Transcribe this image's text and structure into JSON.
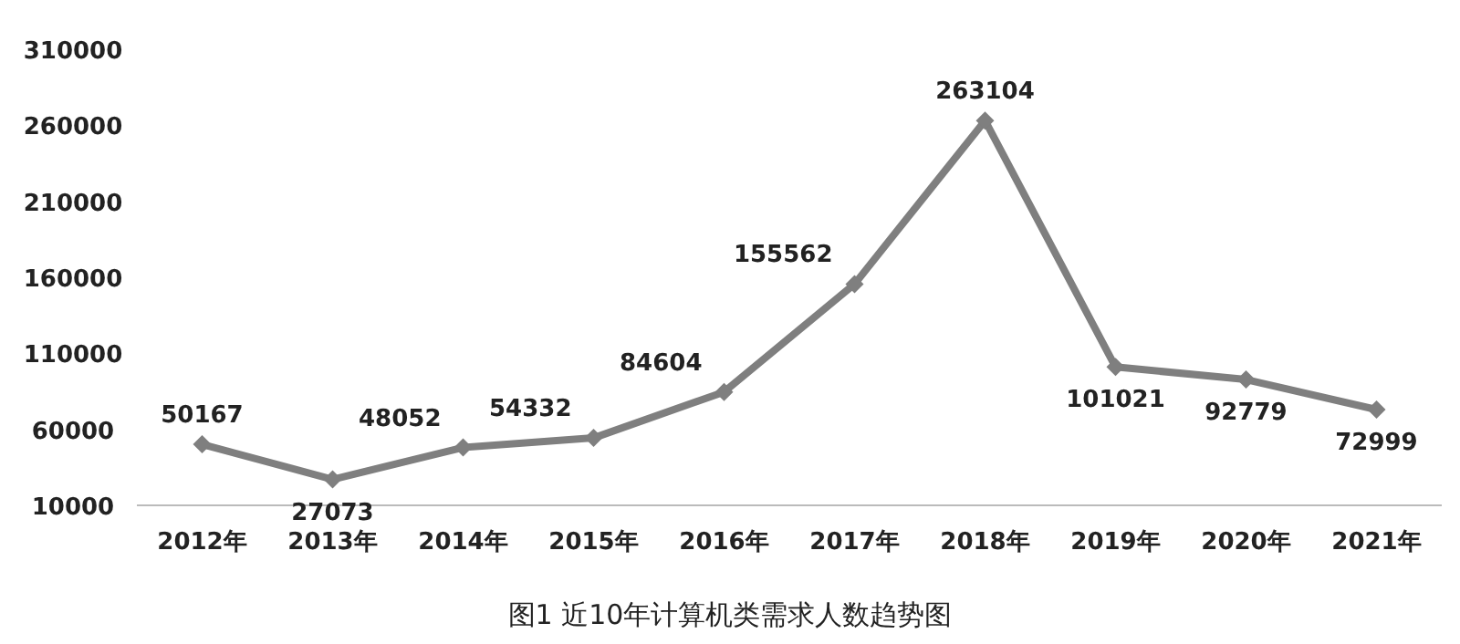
{
  "chart_data": {
    "type": "line",
    "title": "图1 近10年计算机类需求人数趋势图",
    "categories": [
      "2012年",
      "2013年",
      "2014年",
      "2015年",
      "2016年",
      "2017年",
      "2018年",
      "2019年",
      "2020年",
      "2021年"
    ],
    "series": [
      {
        "color": "#7f7f7f",
        "values": [
          50167,
          27073,
          48052,
          54332,
          84604,
          155562,
          263104,
          101021,
          92779,
          72999
        ]
      }
    ],
    "ylim": [
      10000,
      310000
    ],
    "yticks": [
      10000,
      60000,
      110000,
      160000,
      210000,
      260000,
      310000
    ],
    "data_labels": true,
    "marker": "diamond",
    "line_style": "solid",
    "grid": false
  }
}
